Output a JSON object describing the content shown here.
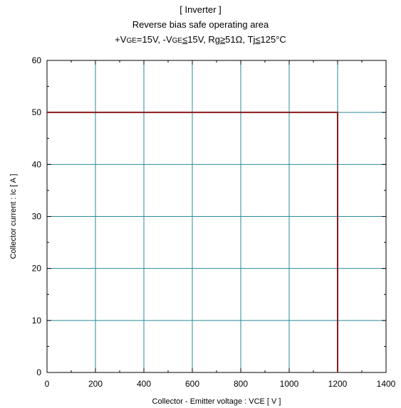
{
  "chart_data": {
    "type": "line",
    "title": "[ Inverter ]",
    "subtitle": "Reverse bias safe operating area",
    "conditions": {
      "p1": "+V",
      "p1_sub": "GE",
      "p2": "=15V,  -V",
      "p2_sub": "GE",
      "p3": "≤",
      "p4": "15V, Rg",
      "p5": "≥",
      "p6": "51Ω,  Tj",
      "p7": "≤",
      "p8": "125°C"
    },
    "xlabel": "Collector - Emitter voltage  :  VCE  [ V ]",
    "ylabel": "Collector current  : Ic  [ A ]",
    "xlim": [
      0,
      1400
    ],
    "ylim": [
      0,
      60
    ],
    "xticks": [
      0,
      200,
      400,
      600,
      800,
      1000,
      1200,
      1400
    ],
    "yticks": [
      0,
      10,
      20,
      30,
      40,
      50,
      60
    ],
    "grid": true,
    "series": [
      {
        "x": [
          0,
          1200,
          1200
        ],
        "y": [
          50,
          50,
          0
        ],
        "color": "#8b1a1a"
      }
    ]
  }
}
